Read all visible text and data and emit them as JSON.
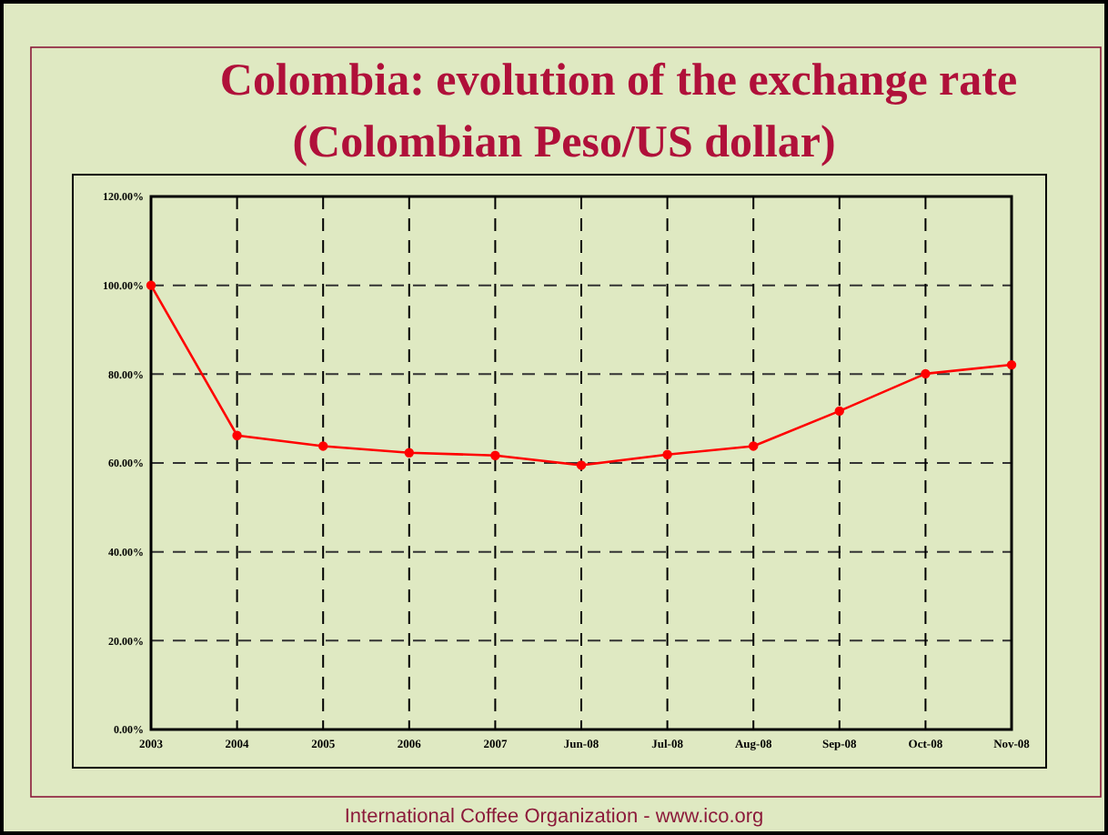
{
  "chart_data": {
    "type": "line",
    "title": "Colombia:  evolution of the exchange rate",
    "subtitle": "(Colombian Peso/US dollar)",
    "categories": [
      "2003",
      "2004",
      "2005",
      "2006",
      "2007",
      "Jun-08",
      "Jul-08",
      "Aug-08",
      "Sep-08",
      "Oct-08",
      "Nov-08"
    ],
    "series": [
      {
        "color": "#ff0000",
        "values": [
          100,
          66.2,
          63.8,
          62.3,
          61.7,
          59.5,
          61.9,
          63.8,
          71.7,
          80.1,
          82.1
        ]
      }
    ],
    "ylim": [
      0,
      120
    ],
    "yticks": [
      {
        "value": 0,
        "label": "0.00%"
      },
      {
        "value": 20,
        "label": "20.00%"
      },
      {
        "value": 40,
        "label": "40.00%"
      },
      {
        "value": 60,
        "label": "60.00%"
      },
      {
        "value": 80,
        "label": "80.00%"
      },
      {
        "value": 100,
        "label": "100.00%"
      },
      {
        "value": 120,
        "label": "120.00%"
      }
    ],
    "grid": true,
    "marker": "circle",
    "line_style": "solid",
    "annotations": [
      "International Coffee Organization  -  www.ico.org"
    ]
  }
}
